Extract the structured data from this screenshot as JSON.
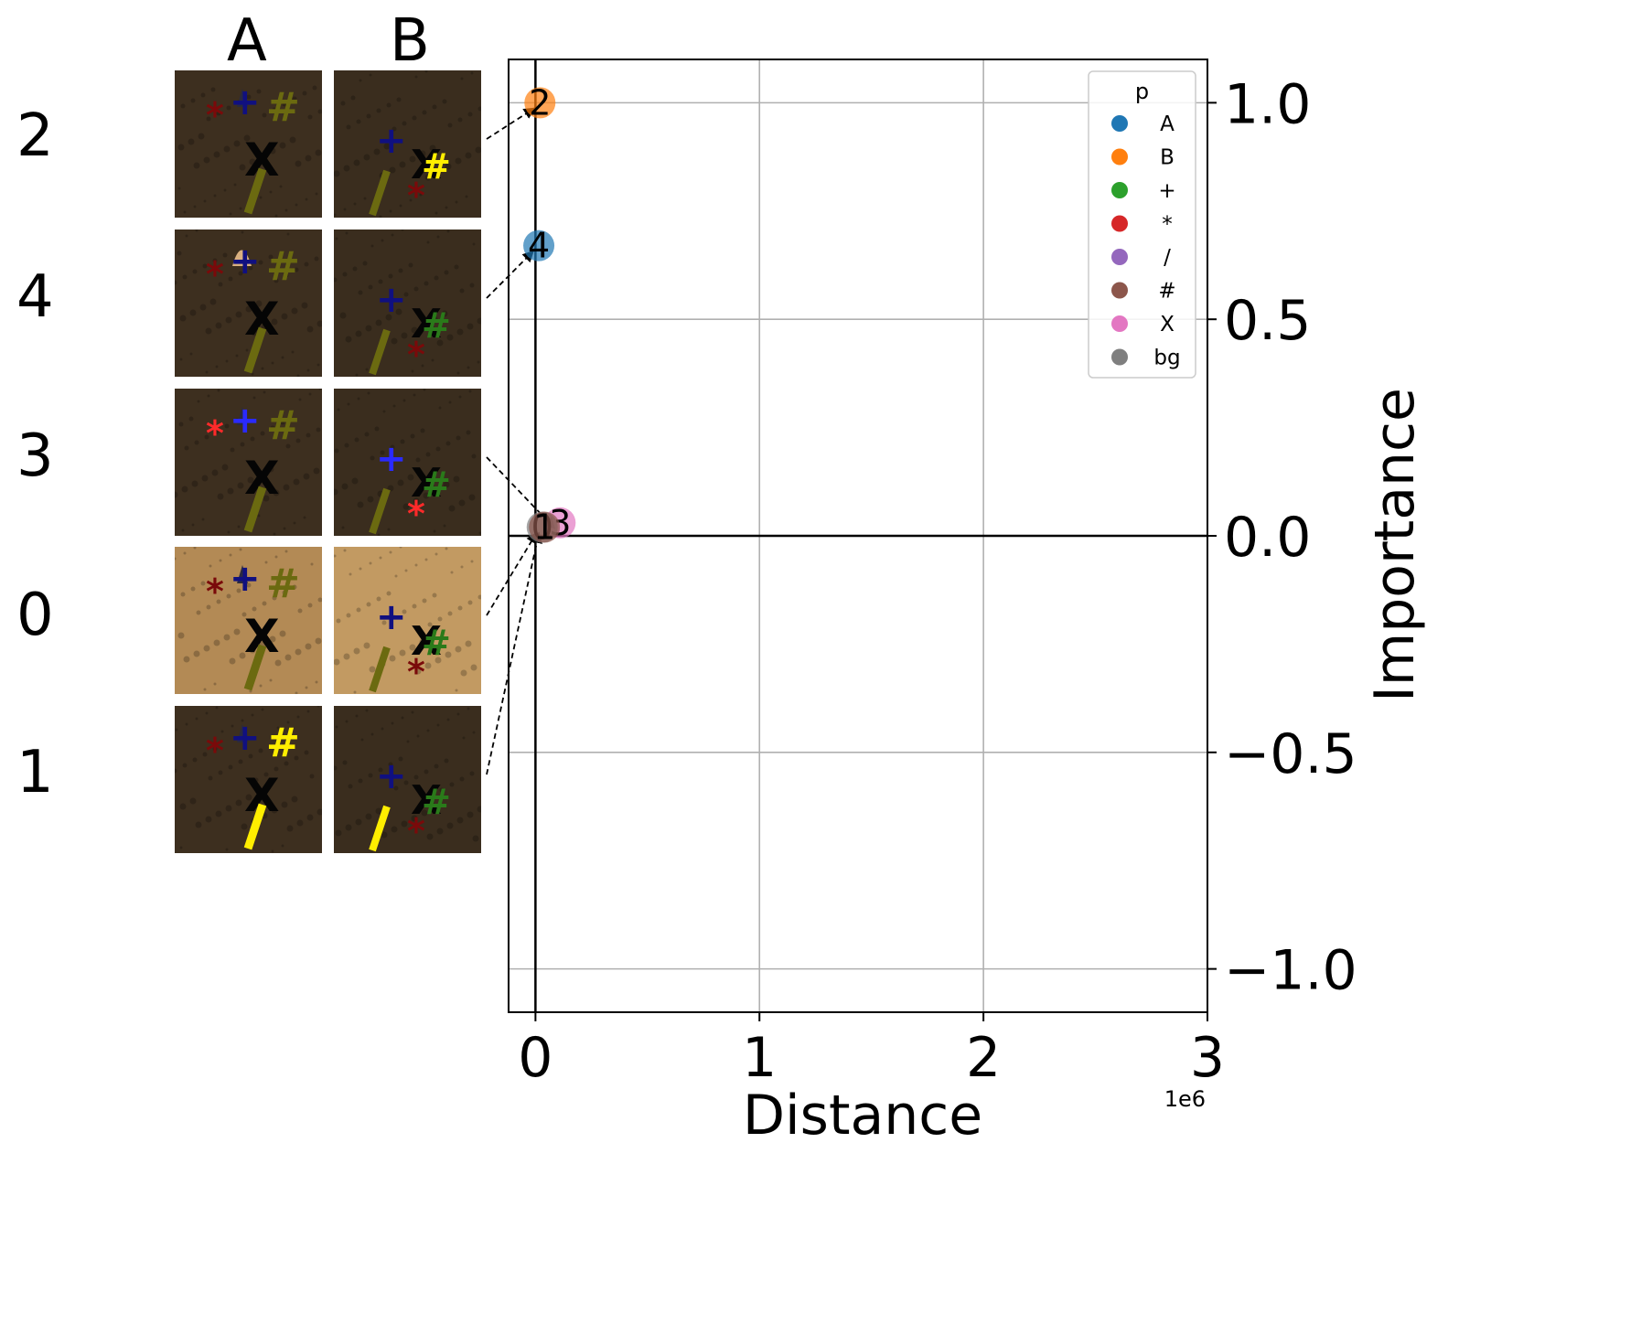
{
  "columns": [
    "A",
    "B"
  ],
  "rows": [
    {
      "label": "2",
      "a_bg": "#3d2f1f",
      "b_bg": "#3a2d1e",
      "highlight": "B"
    },
    {
      "label": "4",
      "a_bg": "#3d2f1f",
      "b_bg": "#3a2d1e",
      "highlight": "A"
    },
    {
      "label": "3",
      "a_bg": "#3d2f1f",
      "b_bg": "#3a2d1e",
      "highlight": "X*+"
    },
    {
      "label": "0",
      "a_bg": "#b38a55",
      "b_bg": "#c29a62",
      "highlight": "bg"
    },
    {
      "label": "1",
      "a_bg": "#3d2f1f",
      "b_bg": "#3a2d1e",
      "highlight": "#/"
    }
  ],
  "chart_data": {
    "type": "scatter",
    "xlabel": "Distance",
    "ylabel": "Importance",
    "x_offset_label": "1e6",
    "xlim": [
      -120000,
      3000000
    ],
    "ylim": [
      -1.1,
      1.1
    ],
    "xticks": [
      0,
      1000000,
      2000000,
      3000000
    ],
    "xtick_labels": [
      "0",
      "1",
      "2",
      "3"
    ],
    "yticks": [
      -1.0,
      -0.5,
      0.0,
      0.5,
      1.0
    ],
    "ytick_labels": [
      "−1.0",
      "−0.5",
      "0.0",
      "0.5",
      "1.0"
    ],
    "grid": true,
    "legend_position": "top-right",
    "legend_title": "p",
    "legend": [
      {
        "name": "A",
        "color": "#1f77b4"
      },
      {
        "name": "B",
        "color": "#ff7f0e"
      },
      {
        "name": "+",
        "color": "#2ca02c"
      },
      {
        "name": "*",
        "color": "#d62728"
      },
      {
        "name": "/",
        "color": "#9467bd"
      },
      {
        "name": "#",
        "color": "#8c564b"
      },
      {
        "name": "X",
        "color": "#e377c2"
      },
      {
        "name": "bg",
        "color": "#7f7f7f"
      }
    ],
    "points": [
      {
        "label": "2",
        "x": 20000,
        "y": 1.0,
        "color": "#ff7f0e"
      },
      {
        "label": "4",
        "x": 15000,
        "y": 0.67,
        "color": "#1f77b4"
      },
      {
        "label": "3",
        "x": 110000,
        "y": 0.03,
        "color": "#e377c2"
      },
      {
        "label": "0",
        "x": 30000,
        "y": 0.02,
        "color": "#7f7f7f"
      },
      {
        "label": "1",
        "x": 40000,
        "y": 0.02,
        "color": "#8c564b"
      }
    ]
  }
}
